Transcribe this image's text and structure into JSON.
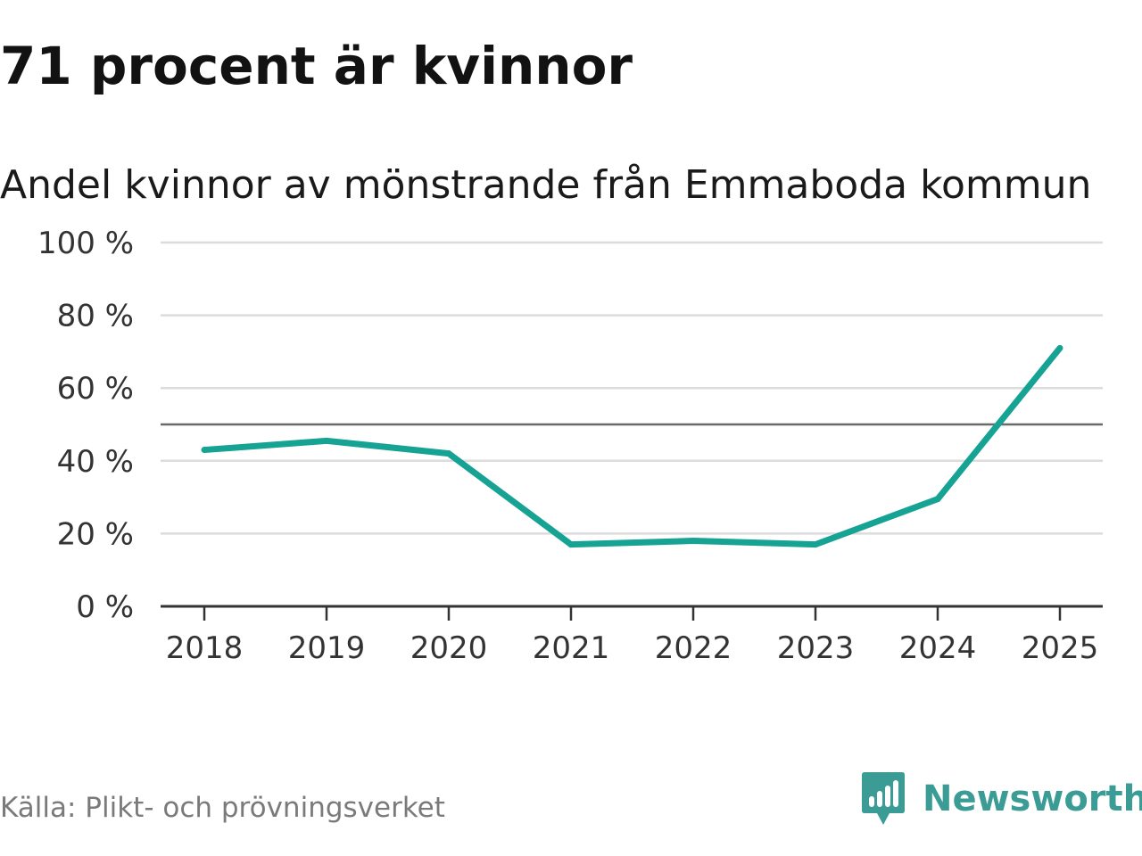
{
  "title": "71 procent är kvinnor",
  "subtitle": "Andel kvinnor av mönstrande från Emmaboda kommun",
  "source": "Källa: Plikt- och prövningsverket",
  "brand": {
    "name": "Newsworthy",
    "icon": "bar-chart-speech-bubble-icon",
    "color": "#3b9c95"
  },
  "colors": {
    "line": "#16a394",
    "grid": "#dcdcdc",
    "reference": "#6a6a6a",
    "axis": "#333333",
    "text": "#333333"
  },
  "chart_data": {
    "type": "line",
    "title": "Andel kvinnor av mönstrande från Emmaboda kommun",
    "xlabel": "",
    "ylabel": "",
    "categories": [
      "2018",
      "2019",
      "2020",
      "2021",
      "2022",
      "2023",
      "2024",
      "2025"
    ],
    "values": [
      43,
      45.5,
      42,
      17,
      18,
      17,
      29.5,
      71
    ],
    "ylim": [
      0,
      100
    ],
    "yticks": [
      0,
      20,
      40,
      60,
      80,
      100
    ],
    "ytick_labels": [
      "0 %",
      "20 %",
      "40 %",
      "60 %",
      "80 %",
      "100 %"
    ],
    "reference_line": 50,
    "grid": true,
    "legend": "none"
  }
}
